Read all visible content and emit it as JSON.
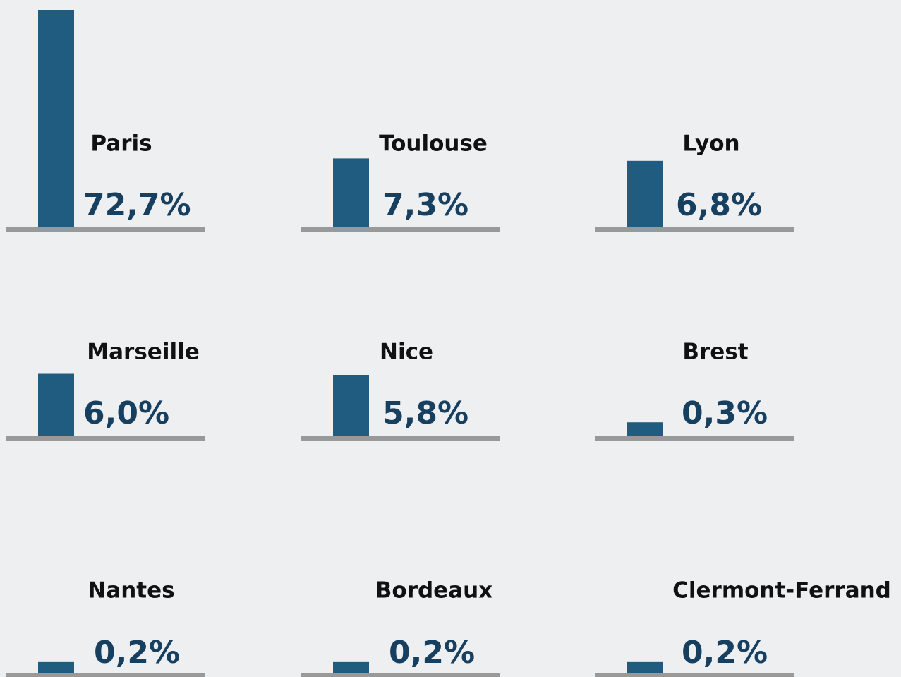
{
  "chart_data": {
    "type": "bar",
    "categories": [
      "Paris",
      "Toulouse",
      "Lyon",
      "Marseille",
      "Nice",
      "Brest",
      "Nantes",
      "Bordeaux",
      "Clermont-Ferrand"
    ],
    "values": [
      72.7,
      7.3,
      6.8,
      6.0,
      5.8,
      0.3,
      0.2,
      0.2,
      0.2
    ],
    "value_labels": [
      "72,7%",
      "7,3%",
      "6,8%",
      "6,0%",
      "5,8%",
      "0,3%",
      "0,2%",
      "0,2%",
      "0,2%"
    ],
    "color": "#1f5c80",
    "baseline_color": "#999999",
    "scale": "sqrt"
  }
}
